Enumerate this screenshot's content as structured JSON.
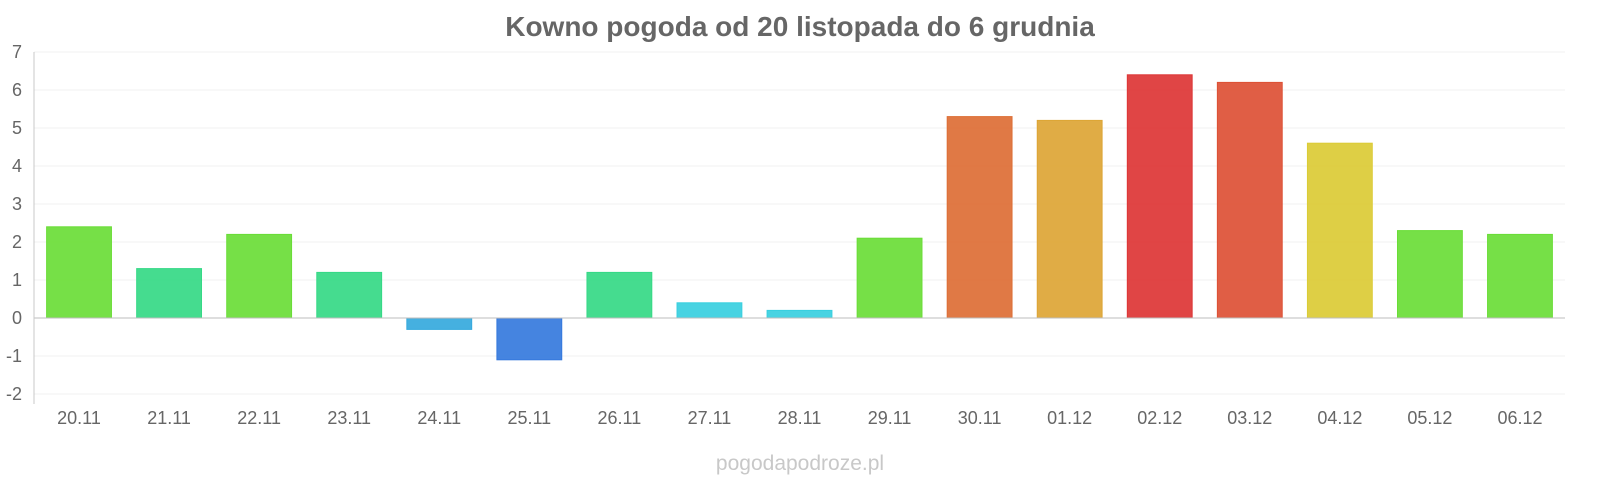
{
  "chart_data": {
    "type": "bar",
    "title": "Kowno pogoda od 20 listopada do 6 grudnia",
    "xlabel": "",
    "ylabel": "",
    "ylim": [
      -2,
      7
    ],
    "yticks": [
      -2,
      -1,
      0,
      1,
      2,
      3,
      4,
      5,
      6,
      7
    ],
    "grid": true,
    "legend": "none",
    "categories": [
      "20.11",
      "21.11",
      "22.11",
      "23.11",
      "24.11",
      "25.11",
      "26.11",
      "27.11",
      "28.11",
      "29.11",
      "30.11",
      "01.12",
      "02.12",
      "03.12",
      "04.12",
      "05.12",
      "06.12"
    ],
    "values": [
      2.4,
      1.3,
      2.2,
      1.2,
      -0.3,
      -1.1,
      1.2,
      0.4,
      0.2,
      2.1,
      5.3,
      5.2,
      6.4,
      6.2,
      4.6,
      2.3,
      2.2
    ],
    "colors": [
      "#6add37",
      "#35d986",
      "#6add37",
      "#35d986",
      "#35a9dd",
      "#3579dd",
      "#35d986",
      "#38cfdf",
      "#38cfdf",
      "#6add37",
      "#dd6e35",
      "#dda535",
      "#dd3535",
      "#dd5035",
      "#dbcb35",
      "#6add37",
      "#6add37"
    ]
  },
  "watermark": "pogodapodroze.pl"
}
